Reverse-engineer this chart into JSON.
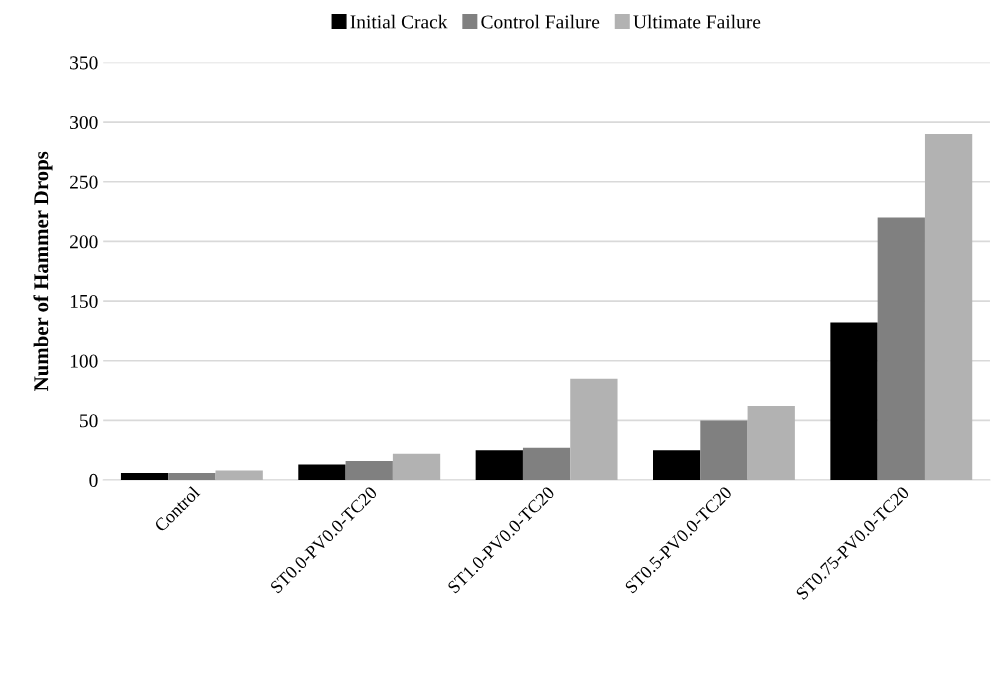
{
  "chart_data": {
    "type": "bar",
    "ylabel": "Number of Hammer Drops",
    "categories": [
      "Control",
      "ST0.0-PV0.0-TC20",
      "ST1.0-PV0.0-TC20",
      "ST0.5-PV0.0-TC20",
      "ST0.75-PV0.0-TC20"
    ],
    "series": [
      {
        "name": "Initial Crack",
        "color": "#000000",
        "values": [
          6,
          13,
          25,
          25,
          132
        ]
      },
      {
        "name": "Control Failure",
        "color": "#808080",
        "values": [
          6,
          16,
          27,
          50,
          220
        ]
      },
      {
        "name": "Ultimate Failure",
        "color": "#b2b2b2",
        "values": [
          8,
          22,
          85,
          62,
          290
        ]
      }
    ],
    "ylim": [
      0,
      350
    ],
    "yticks": [
      0,
      50,
      100,
      150,
      200,
      250,
      300,
      350
    ],
    "grid": "y",
    "legend": "top"
  }
}
